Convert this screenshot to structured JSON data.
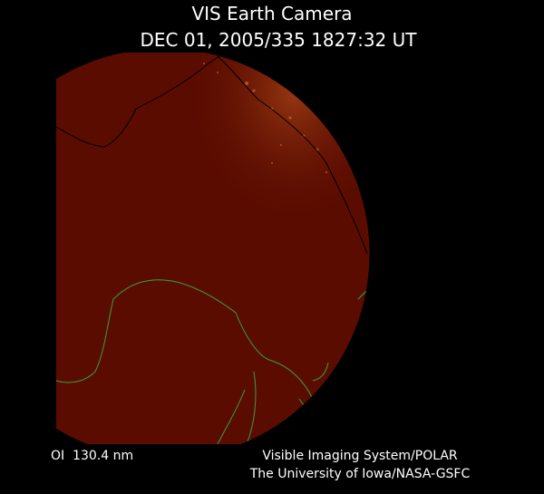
{
  "header": {
    "title": "VIS Earth Camera",
    "timestamp": "DEC 01, 2005/335 1827:32 UT"
  },
  "footer": {
    "filter": "OI  130.4 nm",
    "credit_line1": "Visible Imaging System/POLAR",
    "credit_line2": "The University of Iowa/NASA-GSFC"
  }
}
